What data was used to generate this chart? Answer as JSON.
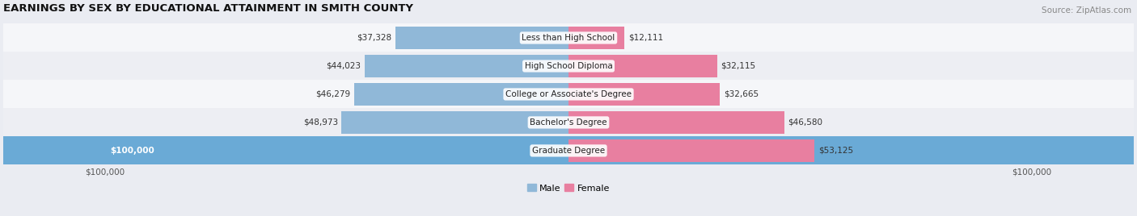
{
  "title": "EARNINGS BY SEX BY EDUCATIONAL ATTAINMENT IN SMITH COUNTY",
  "source": "Source: ZipAtlas.com",
  "categories": [
    "Less than High School",
    "High School Diploma",
    "College or Associate's Degree",
    "Bachelor's Degree",
    "Graduate Degree"
  ],
  "male_values": [
    37328,
    44023,
    46279,
    48973,
    100000
  ],
  "female_values": [
    12111,
    32115,
    32665,
    46580,
    53125
  ],
  "male_color": "#90b8d8",
  "female_color": "#e87fa0",
  "male_color_last": "#6aaad6",
  "background_color": "#eaecf2",
  "row_colors": [
    "#f5f6f9",
    "#edeef3",
    "#f5f6f9",
    "#edeef3",
    "#6aaad6"
  ],
  "max_value": 100000,
  "bar_height": 0.82,
  "axis_label_left": "$100,000",
  "axis_label_right": "$100,000"
}
